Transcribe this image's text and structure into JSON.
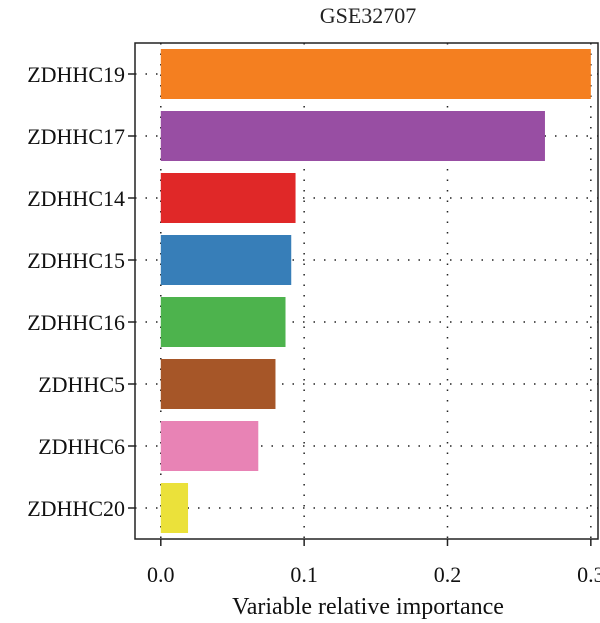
{
  "chart_data": {
    "type": "bar",
    "orientation": "horizontal",
    "title": "GSE32707",
    "xlabel": "Variable relative importance",
    "ylabel": "",
    "xlim": [
      -0.018,
      0.305
    ],
    "xticks": [
      0.0,
      0.1,
      0.2,
      0.3
    ],
    "xtick_labels": [
      "0.0",
      "0.1",
      "0.2",
      "0.3"
    ],
    "grid": true,
    "categories": [
      "ZDHHC19",
      "ZDHHC17",
      "ZDHHC14",
      "ZDHHC15",
      "ZDHHC16",
      "ZDHHC5",
      "ZDHHC6",
      "ZDHHC20"
    ],
    "values": [
      0.3,
      0.268,
      0.094,
      0.091,
      0.087,
      0.08,
      0.068,
      0.019
    ],
    "colors": [
      "#f47f20",
      "#984ea3",
      "#e02828",
      "#377eb8",
      "#4db34d",
      "#a65628",
      "#e883b5",
      "#ebe13a"
    ]
  }
}
